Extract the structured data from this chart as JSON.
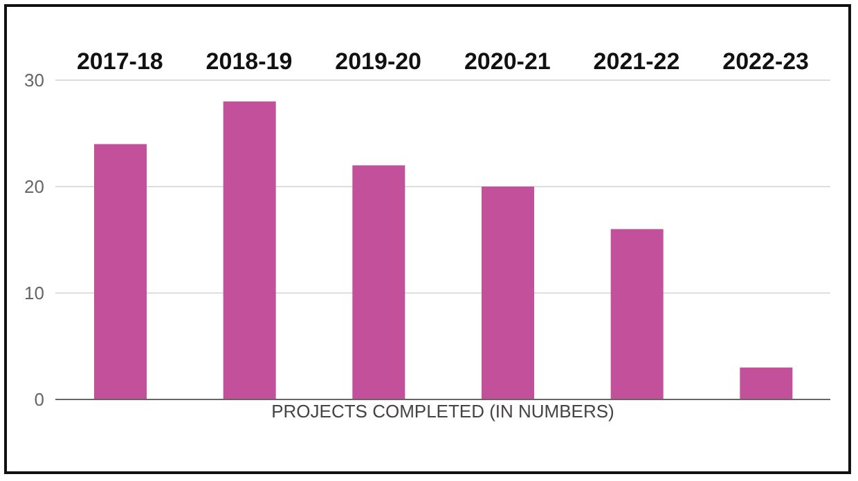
{
  "chart_data": {
    "type": "bar",
    "xlabel": "PROJECTS COMPLETED (IN NUMBERS)",
    "categories": [
      "2017-18",
      "2018-19",
      "2019-20",
      "2020-21",
      "2021-22",
      "2022-23"
    ],
    "values": [
      24,
      28,
      22,
      20,
      16,
      3
    ],
    "color": "#c2509a",
    "ylim": [
      0,
      30
    ],
    "yticks": [
      0,
      10,
      20,
      30
    ],
    "grid": "y"
  }
}
